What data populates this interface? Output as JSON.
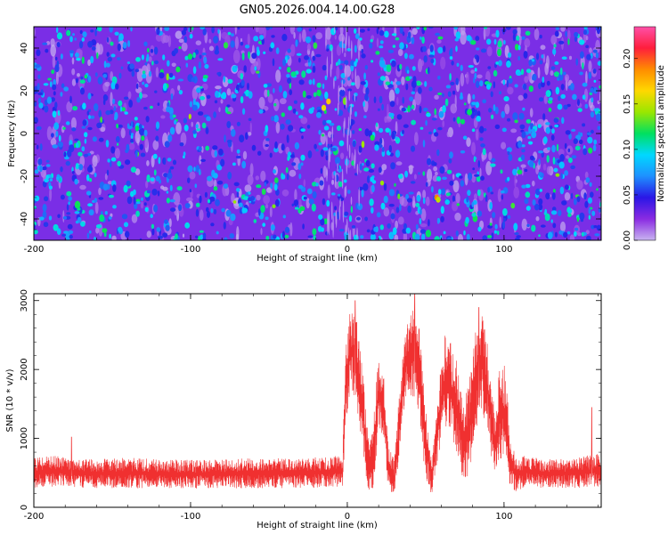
{
  "figure": {
    "title": "GN05.2026.004.14.00.G28"
  },
  "chart_data": [
    {
      "type": "heatmap",
      "title": "GN05.2026.004.14.00.G28",
      "xlabel": "Height of straight line (km)",
      "ylabel": "Frequency (Hz)",
      "xlim": [
        -200,
        162
      ],
      "ylim": [
        -50,
        50
      ],
      "xticks": [
        -200,
        -100,
        0,
        100
      ],
      "yticks": [
        -40,
        -20,
        0,
        20,
        40
      ],
      "colorbar": {
        "label": "Normalized spectral amplitude",
        "range": [
          0.0,
          0.235
        ],
        "ticks": [
          0.0,
          0.05,
          0.1,
          0.15,
          0.2
        ],
        "tick_labels": [
          "0.00",
          "0.05",
          "0.10",
          "0.15",
          "0.20"
        ],
        "colors": [
          "#c8b4f0",
          "#8a2be2",
          "#2a16e6",
          "#1e90ff",
          "#00d8ff",
          "#00e060",
          "#9ae600",
          "#ffd800",
          "#ff8c00",
          "#ff1e3c",
          "#ff50a8"
        ]
      },
      "background_level": 0.05,
      "hot_spots": [
        {
          "x": -12,
          "y": 15,
          "value": 0.17
        },
        {
          "x": -15,
          "y": 12,
          "value": 0.16
        },
        {
          "x": 57,
          "y": -30,
          "value": 0.19
        },
        {
          "x": 58,
          "y": -31,
          "value": 0.15
        },
        {
          "x": 16,
          "y": -2,
          "value": 0.12
        },
        {
          "x": -108,
          "y": 30,
          "value": 0.12
        },
        {
          "x": 155,
          "y": -8,
          "value": 0.12
        },
        {
          "x": -178,
          "y": 47,
          "value": 0.11
        }
      ]
    },
    {
      "type": "line",
      "xlabel": "Height of straight line (km)",
      "ylabel": "SNR (10 * v/v)",
      "xlim": [
        -200,
        162
      ],
      "ylim": [
        0,
        3100
      ],
      "xticks": [
        -200,
        -100,
        0,
        100
      ],
      "yticks": [
        0,
        1000,
        2000,
        3000
      ],
      "color": "#f03030",
      "envelope": {
        "x": [
          -200,
          -185,
          -175,
          -160,
          -140,
          -120,
          -100,
          -80,
          -60,
          -40,
          -20,
          -3,
          -1,
          2,
          6,
          10,
          14,
          17,
          20,
          23,
          26,
          30,
          34,
          38,
          42,
          46,
          50,
          54,
          58,
          62,
          66,
          70,
          74,
          78,
          82,
          86,
          90,
          94,
          98,
          101,
          104,
          108,
          115,
          125,
          140,
          150,
          162
        ],
        "lower": [
          280,
          300,
          290,
          280,
          270,
          280,
          270,
          280,
          270,
          280,
          280,
          300,
          1200,
          1700,
          1500,
          700,
          180,
          300,
          1100,
          1000,
          300,
          160,
          900,
          1700,
          1500,
          1300,
          350,
          160,
          700,
          1200,
          1000,
          700,
          350,
          500,
          1100,
          1400,
          1000,
          450,
          700,
          700,
          300,
          200,
          300,
          280,
          280,
          280,
          300
        ],
        "upper": [
          720,
          750,
          700,
          700,
          720,
          700,
          690,
          700,
          720,
          710,
          730,
          760,
          2300,
          2900,
          2700,
          2000,
          900,
          1400,
          2200,
          2100,
          900,
          700,
          1900,
          2700,
          2900,
          2600,
          1500,
          650,
          1700,
          2500,
          2400,
          2100,
          1500,
          1900,
          2600,
          2800,
          2300,
          1400,
          2200,
          2000,
          1000,
          750,
          750,
          700,
          700,
          750,
          780
        ]
      },
      "peaks": [
        {
          "x": 5,
          "y": 3000
        },
        {
          "x": 43,
          "y": 3100
        },
        {
          "x": 84,
          "y": 2900
        },
        {
          "x": 156,
          "y": 1450
        },
        {
          "x": -176,
          "y": 1020
        }
      ]
    }
  ]
}
